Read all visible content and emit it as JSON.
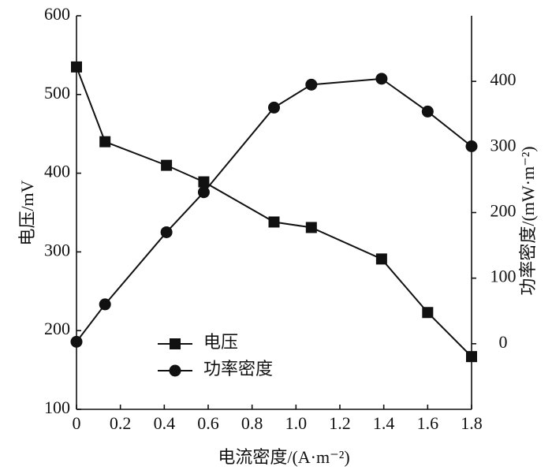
{
  "chart_data": {
    "type": "line",
    "x": [
      0,
      0.13,
      0.41,
      0.58,
      0.9,
      1.07,
      1.39,
      1.6,
      1.8
    ],
    "xlabel": "电流密度/(A·m⁻²)",
    "ylabel": "电压/mV",
    "y2label": "功率密度/(mW·m⁻²)",
    "xlim": [
      0,
      1.8
    ],
    "xticks": [
      0,
      0.2,
      0.4,
      0.6,
      0.8,
      {
        "value": 1,
        "label": "1.0"
      },
      1.2,
      1.4,
      1.6,
      1.8
    ],
    "ylim": [
      100,
      600
    ],
    "yticks": [
      100,
      200,
      300,
      400,
      500,
      600
    ],
    "y2lim": [
      -100,
      500
    ],
    "y2ticks": [
      0,
      100,
      200,
      300,
      400
    ],
    "legend": "lower-left",
    "series": [
      {
        "name": "电压",
        "color": "#111111",
        "marker": "square",
        "axis": "y",
        "values": [
          535,
          440,
          410,
          389,
          338,
          331,
          291,
          223,
          167
        ]
      },
      {
        "name": "功率密度",
        "color": "#111111",
        "marker": "circle",
        "axis": "y2",
        "values": [
          3,
          60,
          170,
          231,
          360,
          395,
          404,
          354,
          301
        ]
      }
    ]
  }
}
